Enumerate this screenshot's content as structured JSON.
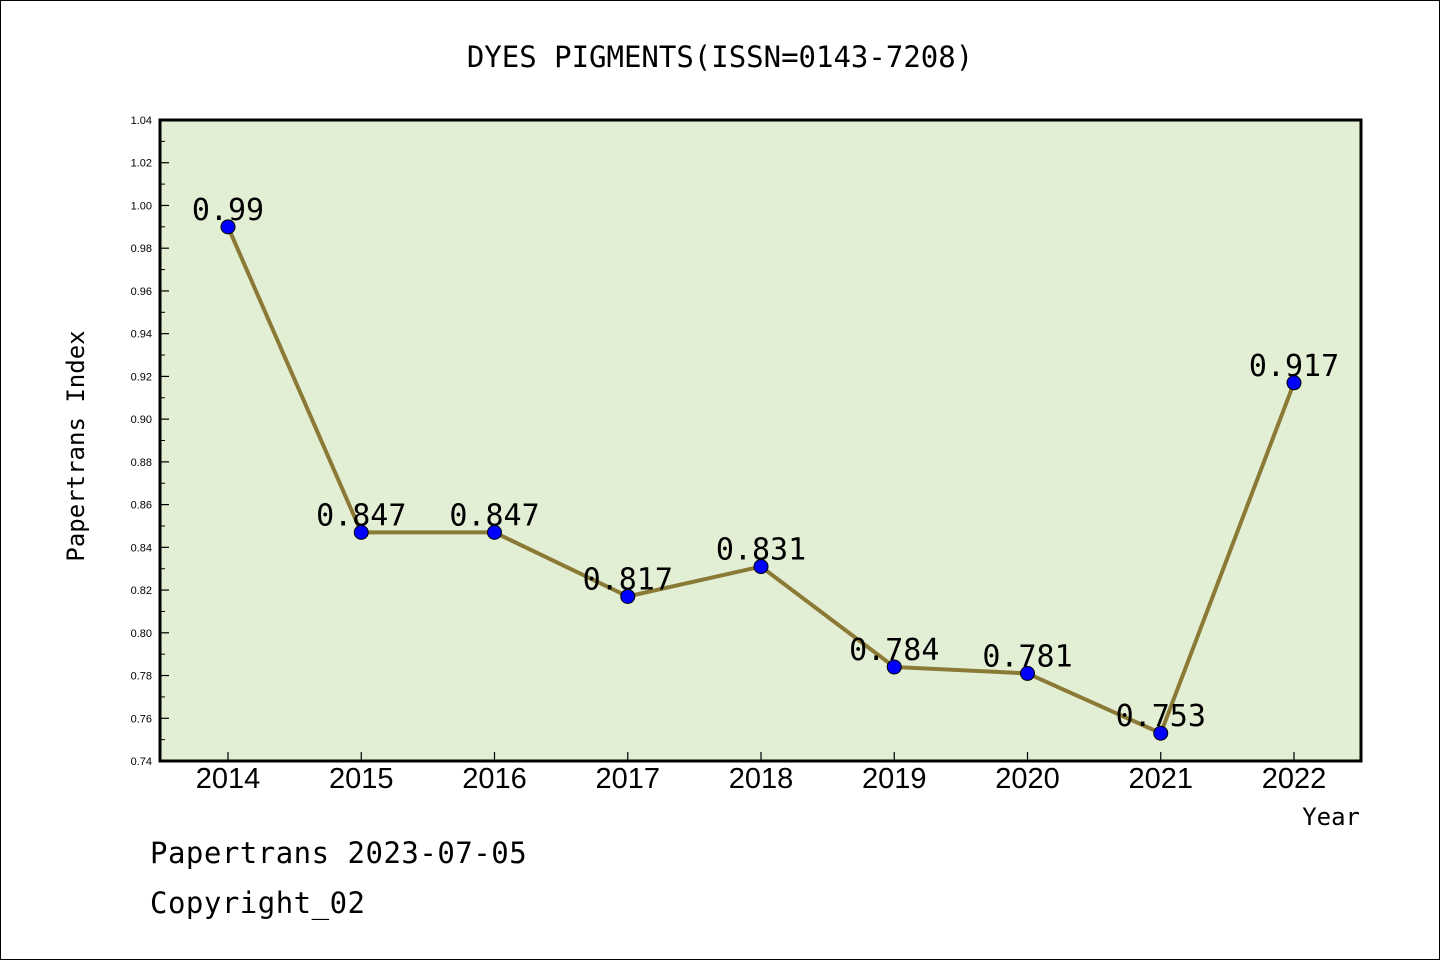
{
  "chart_data": {
    "type": "line",
    "title": "DYES PIGMENTS(ISSN=0143-7208)",
    "xlabel": "Year",
    "ylabel": "Papertrans Index",
    "categories": [
      "2014",
      "2015",
      "2016",
      "2017",
      "2018",
      "2019",
      "2020",
      "2021",
      "2022"
    ],
    "values": [
      0.99,
      0.847,
      0.847,
      0.817,
      0.831,
      0.784,
      0.781,
      0.753,
      0.917
    ],
    "data_labels": [
      "0.99",
      "0.847",
      "0.847",
      "0.817",
      "0.831",
      "0.784",
      "0.781",
      "0.753",
      "0.917"
    ],
    "ylim": [
      0.74,
      1.04
    ],
    "yticks": [
      "0.74",
      "0.76",
      "0.78",
      "0.80",
      "0.82",
      "0.84",
      "0.86",
      "0.88",
      "0.90",
      "0.92",
      "0.94",
      "0.96",
      "0.98",
      "1.00",
      "1.02",
      "1.04"
    ],
    "grid": false,
    "colors": {
      "plot_background": "#e2efd5",
      "line": "#8b7a35",
      "marker": "#0000ff"
    }
  },
  "footer": {
    "line1": "Papertrans 2023-07-05",
    "line2": "Copyright_02"
  }
}
